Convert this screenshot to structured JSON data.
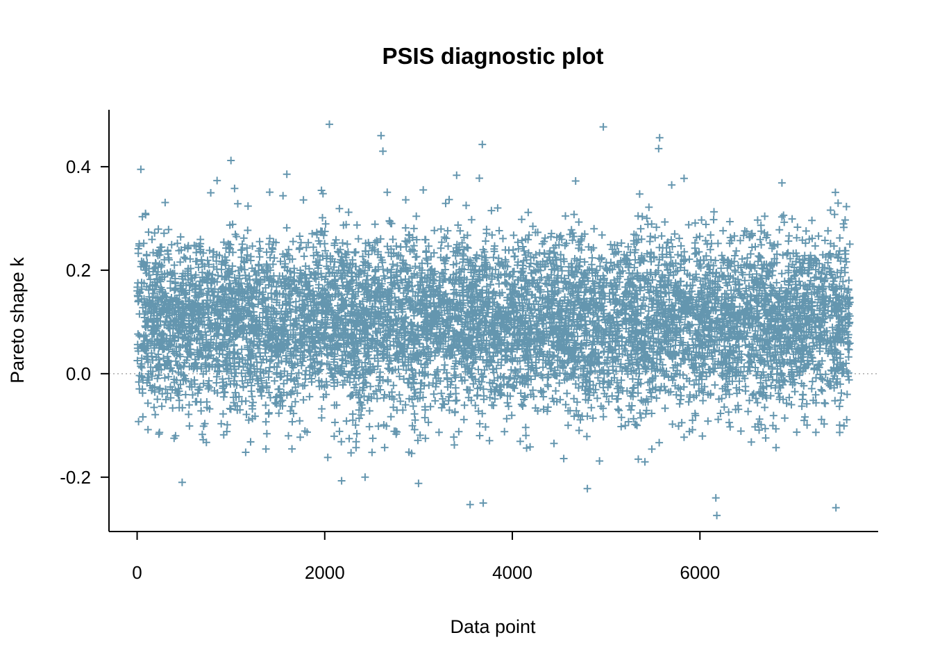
{
  "chart_data": {
    "type": "scatter",
    "title": "PSIS diagnostic plot",
    "xlabel": "Data point",
    "ylabel": "Pareto shape k",
    "xlim": [
      -300,
      7900
    ],
    "ylim": [
      -0.305,
      0.51
    ],
    "x_ticks": [
      0,
      2000,
      4000,
      6000
    ],
    "x_tick_labels": [
      "0",
      "2000",
      "4000",
      "6000"
    ],
    "y_ticks": [
      -0.2,
      0.0,
      0.2,
      0.4
    ],
    "y_tick_labels": [
      "-0.2",
      "0.0",
      "0.2",
      "0.4"
    ],
    "reference_line_y": 0.0,
    "marker": "+",
    "n_points": 7600,
    "point_color": "#6496AF",
    "notable_points": [
      {
        "x": 40,
        "y": 0.395
      },
      {
        "x": 1000,
        "y": 0.412
      },
      {
        "x": 2050,
        "y": 0.482
      },
      {
        "x": 2600,
        "y": 0.46
      },
      {
        "x": 2620,
        "y": 0.43
      },
      {
        "x": 3680,
        "y": 0.443
      },
      {
        "x": 4970,
        "y": 0.477
      },
      {
        "x": 5570,
        "y": 0.456
      },
      {
        "x": 5560,
        "y": 0.435
      },
      {
        "x": 480,
        "y": -0.21
      },
      {
        "x": 2180,
        "y": -0.207
      },
      {
        "x": 2430,
        "y": -0.2
      },
      {
        "x": 3000,
        "y": -0.212
      },
      {
        "x": 3550,
        "y": -0.253
      },
      {
        "x": 3690,
        "y": -0.25
      },
      {
        "x": 4800,
        "y": -0.222
      },
      {
        "x": 6170,
        "y": -0.24
      },
      {
        "x": 6180,
        "y": -0.274
      },
      {
        "x": 7450,
        "y": -0.259
      }
    ]
  }
}
